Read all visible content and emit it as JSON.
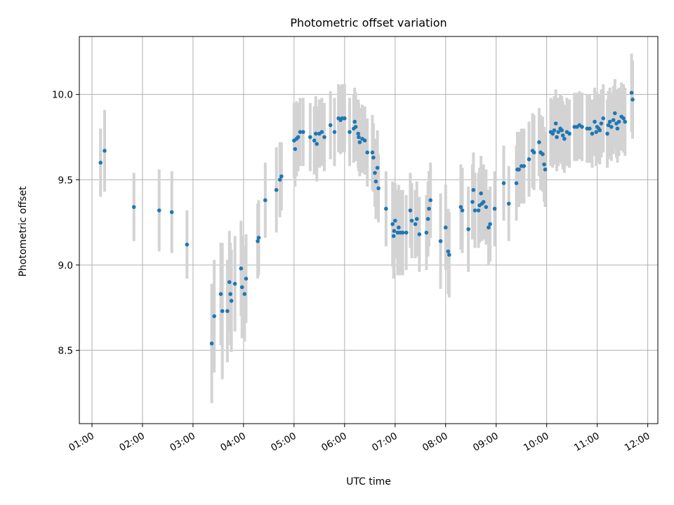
{
  "chart_data": {
    "type": "scatter",
    "title": "Photometric offset variation",
    "xlabel": "UTC time",
    "ylabel": "Photometric offset",
    "x_unit": "hours UTC",
    "xlim": [
      0.75,
      12.2
    ],
    "ylim": [
      8.07,
      10.34
    ],
    "x_ticks": [
      1,
      2,
      3,
      4,
      5,
      6,
      7,
      8,
      9,
      10,
      11,
      12
    ],
    "x_tick_labels": [
      "01:00",
      "02:00",
      "03:00",
      "04:00",
      "05:00",
      "06:00",
      "07:00",
      "08:00",
      "09:00",
      "10:00",
      "11:00",
      "12:00"
    ],
    "y_ticks": [
      8.5,
      9.0,
      9.5,
      10.0
    ],
    "y_tick_labels": [
      "8.5",
      "9.0",
      "9.5",
      "10.0"
    ],
    "grid": true,
    "marker_color": "#1f77b4",
    "errorbar_color": "#d3d3d3",
    "series": [
      {
        "points": [
          [
            1.17,
            9.6,
            0.2
          ],
          [
            1.25,
            9.67,
            0.24
          ],
          [
            1.83,
            9.34,
            0.2
          ],
          [
            2.33,
            9.32,
            0.24
          ],
          [
            2.58,
            9.31,
            0.24
          ],
          [
            2.88,
            9.12,
            0.2
          ],
          [
            3.37,
            8.54,
            0.35
          ],
          [
            3.42,
            8.7,
            0.33
          ],
          [
            3.55,
            8.83,
            0.3
          ],
          [
            3.58,
            8.73,
            0.4
          ],
          [
            3.68,
            8.73,
            0.3
          ],
          [
            3.72,
            8.9,
            0.3
          ],
          [
            3.74,
            8.83,
            0.3
          ],
          [
            3.76,
            8.79,
            0.3
          ],
          [
            3.83,
            8.89,
            0.28
          ],
          [
            3.95,
            8.98,
            0.28
          ],
          [
            3.97,
            8.87,
            0.3
          ],
          [
            4.02,
            8.83,
            0.28
          ],
          [
            4.05,
            8.92,
            0.26
          ],
          [
            4.28,
            9.14,
            0.22
          ],
          [
            4.3,
            9.16,
            0.22
          ],
          [
            4.43,
            9.38,
            0.22
          ],
          [
            4.65,
            9.44,
            0.25
          ],
          [
            4.72,
            9.5,
            0.22
          ],
          [
            4.75,
            9.52,
            0.2
          ],
          [
            5.0,
            9.73,
            0.22
          ],
          [
            5.02,
            9.68,
            0.22
          ],
          [
            5.05,
            9.74,
            0.22
          ],
          [
            5.08,
            9.75,
            0.2
          ],
          [
            5.12,
            9.78,
            0.2
          ],
          [
            5.18,
            9.78,
            0.2
          ],
          [
            5.32,
            9.75,
            0.2
          ],
          [
            5.4,
            9.73,
            0.2
          ],
          [
            5.43,
            9.77,
            0.22
          ],
          [
            5.45,
            9.71,
            0.22
          ],
          [
            5.5,
            9.77,
            0.2
          ],
          [
            5.55,
            9.78,
            0.2
          ],
          [
            5.6,
            9.75,
            0.2
          ],
          [
            5.72,
            9.82,
            0.2
          ],
          [
            5.8,
            9.78,
            0.2
          ],
          [
            5.88,
            9.86,
            0.2
          ],
          [
            5.92,
            9.85,
            0.2
          ],
          [
            5.95,
            9.86,
            0.2
          ],
          [
            6.0,
            9.86,
            0.2
          ],
          [
            6.1,
            9.78,
            0.2
          ],
          [
            6.18,
            9.8,
            0.2
          ],
          [
            6.2,
            9.84,
            0.2
          ],
          [
            6.22,
            9.81,
            0.2
          ],
          [
            6.27,
            9.77,
            0.2
          ],
          [
            6.28,
            9.75,
            0.2
          ],
          [
            6.3,
            9.72,
            0.2
          ],
          [
            6.35,
            9.74,
            0.2
          ],
          [
            6.4,
            9.73,
            0.2
          ],
          [
            6.45,
            9.66,
            0.2
          ],
          [
            6.55,
            9.66,
            0.22
          ],
          [
            6.57,
            9.63,
            0.2
          ],
          [
            6.6,
            9.54,
            0.2
          ],
          [
            6.62,
            9.49,
            0.22
          ],
          [
            6.65,
            9.57,
            0.22
          ],
          [
            6.67,
            9.45,
            0.2
          ],
          [
            6.82,
            9.33,
            0.22
          ],
          [
            6.95,
            9.24,
            0.25
          ],
          [
            6.97,
            9.17,
            0.25
          ],
          [
            6.98,
            9.2,
            0.25
          ],
          [
            7.0,
            9.26,
            0.22
          ],
          [
            7.05,
            9.19,
            0.25
          ],
          [
            7.07,
            9.22,
            0.25
          ],
          [
            7.1,
            9.19,
            0.25
          ],
          [
            7.15,
            9.19,
            0.25
          ],
          [
            7.22,
            9.19,
            0.22
          ],
          [
            7.3,
            9.32,
            0.22
          ],
          [
            7.33,
            9.26,
            0.22
          ],
          [
            7.4,
            9.24,
            0.2
          ],
          [
            7.43,
            9.27,
            0.22
          ],
          [
            7.48,
            9.18,
            0.22
          ],
          [
            7.62,
            9.19,
            0.22
          ],
          [
            7.65,
            9.27,
            0.22
          ],
          [
            7.67,
            9.33,
            0.22
          ],
          [
            7.7,
            9.38,
            0.22
          ],
          [
            7.9,
            9.14,
            0.28
          ],
          [
            8.0,
            9.22,
            0.25
          ],
          [
            8.05,
            9.08,
            0.25
          ],
          [
            8.07,
            9.06,
            0.25
          ],
          [
            8.3,
            9.34,
            0.25
          ],
          [
            8.33,
            9.32,
            0.25
          ],
          [
            8.45,
            9.21,
            0.25
          ],
          [
            8.53,
            9.37,
            0.22
          ],
          [
            8.55,
            9.44,
            0.22
          ],
          [
            8.58,
            9.32,
            0.22
          ],
          [
            8.65,
            9.32,
            0.22
          ],
          [
            8.67,
            9.35,
            0.22
          ],
          [
            8.7,
            9.42,
            0.22
          ],
          [
            8.72,
            9.36,
            0.22
          ],
          [
            8.75,
            9.37,
            0.22
          ],
          [
            8.8,
            9.34,
            0.22
          ],
          [
            8.85,
            9.22,
            0.22
          ],
          [
            8.88,
            9.24,
            0.22
          ],
          [
            8.97,
            9.33,
            0.22
          ],
          [
            9.15,
            9.48,
            0.22
          ],
          [
            9.25,
            9.36,
            0.22
          ],
          [
            9.4,
            9.48,
            0.22
          ],
          [
            9.42,
            9.56,
            0.22
          ],
          [
            9.45,
            9.56,
            0.22
          ],
          [
            9.5,
            9.58,
            0.22
          ],
          [
            9.55,
            9.58,
            0.22
          ],
          [
            9.65,
            9.62,
            0.22
          ],
          [
            9.72,
            9.67,
            0.22
          ],
          [
            9.75,
            9.66,
            0.22
          ],
          [
            9.85,
            9.72,
            0.2
          ],
          [
            9.88,
            9.66,
            0.22
          ],
          [
            9.92,
            9.65,
            0.22
          ],
          [
            9.95,
            9.59,
            0.22
          ],
          [
            9.97,
            9.56,
            0.22
          ],
          [
            10.08,
            9.78,
            0.2
          ],
          [
            10.12,
            9.77,
            0.2
          ],
          [
            10.15,
            9.79,
            0.2
          ],
          [
            10.18,
            9.83,
            0.2
          ],
          [
            10.2,
            9.75,
            0.2
          ],
          [
            10.23,
            9.78,
            0.2
          ],
          [
            10.27,
            9.8,
            0.2
          ],
          [
            10.3,
            9.79,
            0.2
          ],
          [
            10.32,
            9.76,
            0.2
          ],
          [
            10.35,
            9.74,
            0.2
          ],
          [
            10.4,
            9.78,
            0.2
          ],
          [
            10.45,
            9.77,
            0.2
          ],
          [
            10.55,
            9.81,
            0.2
          ],
          [
            10.6,
            9.81,
            0.2
          ],
          [
            10.65,
            9.82,
            0.2
          ],
          [
            10.7,
            9.81,
            0.2
          ],
          [
            10.8,
            9.8,
            0.2
          ],
          [
            10.85,
            9.8,
            0.2
          ],
          [
            10.9,
            9.77,
            0.2
          ],
          [
            10.95,
            9.84,
            0.2
          ],
          [
            10.98,
            9.78,
            0.2
          ],
          [
            11.0,
            9.81,
            0.2
          ],
          [
            11.03,
            9.8,
            0.2
          ],
          [
            11.05,
            9.79,
            0.2
          ],
          [
            11.08,
            9.83,
            0.2
          ],
          [
            11.12,
            9.86,
            0.2
          ],
          [
            11.2,
            9.77,
            0.2
          ],
          [
            11.22,
            9.82,
            0.2
          ],
          [
            11.25,
            9.84,
            0.2
          ],
          [
            11.28,
            9.81,
            0.2
          ],
          [
            11.32,
            9.85,
            0.2
          ],
          [
            11.35,
            9.89,
            0.2
          ],
          [
            11.38,
            9.83,
            0.2
          ],
          [
            11.4,
            9.8,
            0.2
          ],
          [
            11.43,
            9.84,
            0.2
          ],
          [
            11.48,
            9.87,
            0.2
          ],
          [
            11.52,
            9.86,
            0.2
          ],
          [
            11.55,
            9.84,
            0.2
          ],
          [
            11.68,
            10.01,
            0.23
          ],
          [
            11.7,
            9.97,
            0.23
          ]
        ]
      }
    ]
  }
}
